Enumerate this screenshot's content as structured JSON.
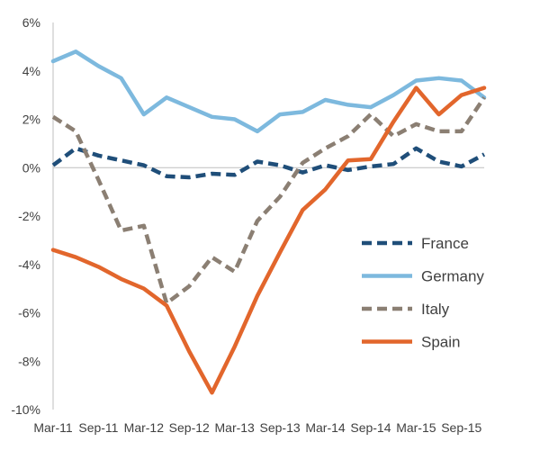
{
  "chart_data": {
    "type": "line",
    "title": "",
    "xlabel": "",
    "ylabel": "",
    "ylim": [
      -10,
      6
    ],
    "y_ticks": [
      6,
      4,
      2,
      0,
      -2,
      -4,
      -6,
      -8,
      -10
    ],
    "y_tick_labels": [
      "6%",
      "4%",
      "2%",
      "0%",
      "-2%",
      "-4%",
      "-6%",
      "-8%",
      "-10%"
    ],
    "x_tick_labels": [
      "Mar-11",
      "Sep-11",
      "Mar-12",
      "Sep-12",
      "Mar-13",
      "Sep-13",
      "Mar-14",
      "Sep-14",
      "Mar-15",
      "Sep-15"
    ],
    "x": [
      "Mar-11",
      "Jun-11",
      "Sep-11",
      "Dec-11",
      "Mar-12",
      "Jun-12",
      "Sep-12",
      "Dec-12",
      "Mar-13",
      "Jun-13",
      "Sep-13",
      "Dec-13",
      "Mar-14",
      "Jun-14",
      "Sep-14",
      "Dec-14",
      "Mar-15",
      "Jun-15",
      "Sep-15",
      "Dec-15"
    ],
    "legend_position": "bottom-right",
    "series": [
      {
        "name": "France",
        "color": "#1f4e79",
        "dash": "dashed",
        "values": [
          0.1,
          0.8,
          0.5,
          0.3,
          0.1,
          -0.35,
          -0.4,
          -0.25,
          -0.3,
          0.25,
          0.1,
          -0.2,
          0.1,
          -0.1,
          0.05,
          0.15,
          0.8,
          0.25,
          0.05,
          0.55
        ]
      },
      {
        "name": "Germany",
        "color": "#7db9de",
        "dash": "solid",
        "values": [
          4.4,
          4.8,
          4.2,
          3.7,
          2.2,
          2.9,
          2.5,
          2.1,
          2.0,
          1.5,
          2.2,
          2.3,
          2.8,
          2.6,
          2.5,
          3.0,
          3.6,
          3.7,
          3.6,
          2.9
        ]
      },
      {
        "name": "Italy",
        "color": "#8b7f73",
        "dash": "dashed",
        "values": [
          2.1,
          1.5,
          -0.5,
          -2.6,
          -2.4,
          -5.6,
          -4.9,
          -3.7,
          -4.3,
          -2.2,
          -1.2,
          0.2,
          0.8,
          1.3,
          2.2,
          1.3,
          1.8,
          1.5,
          1.5,
          2.9
        ]
      },
      {
        "name": "Spain",
        "color": "#e2662c",
        "dash": "solid",
        "values": [
          -3.4,
          -3.7,
          -4.1,
          -4.6,
          -5.0,
          -5.7,
          -7.6,
          -9.3,
          -7.4,
          -5.3,
          -3.5,
          -1.75,
          -0.9,
          0.3,
          0.35,
          1.9,
          3.3,
          2.2,
          3.0,
          3.3
        ]
      }
    ]
  }
}
